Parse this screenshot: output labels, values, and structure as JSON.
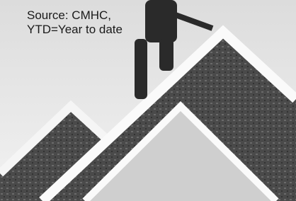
{
  "caption": {
    "lines": [
      "Source: CMHC,",
      "YTD=Year to date"
    ]
  }
}
